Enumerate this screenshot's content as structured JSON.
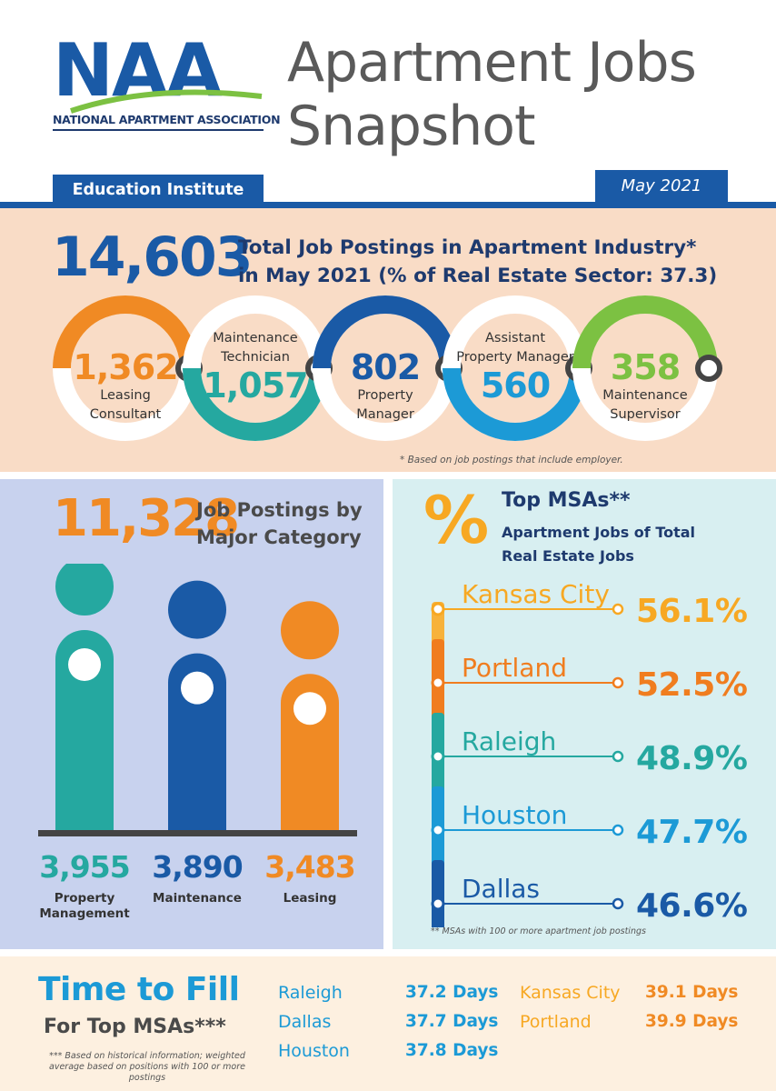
{
  "header": {
    "logo_letters": "NAA",
    "org_name": "NATIONAL APARTMENT ASSOCIATION",
    "org_unit": "Education Institute",
    "title_line1": "Apartment Jobs",
    "title_line2": "Snapshot",
    "date": "May 2021"
  },
  "totals": {
    "number": "14,603",
    "desc_line1": "Total Job Postings in Apartment Industry*",
    "desc_line2": "in May 2021 (% of Real Estate Sector: 37.3)",
    "footnote": "* Based on job postings that include employer."
  },
  "roles": [
    {
      "value": "1,362",
      "label_line1": "Leasing",
      "label_line2": "Consultant",
      "color": "#f08a24",
      "value_color": "#f08a24"
    },
    {
      "value": "1,057",
      "label_line1": "Maintenance",
      "label_line2": "Technician",
      "color": "#25a8a0",
      "value_color": "#25a8a0"
    },
    {
      "value": "802",
      "label_line1": "Property",
      "label_line2": "Manager",
      "color": "#1a5aa6",
      "value_color": "#1a5aa6"
    },
    {
      "value": "560",
      "label_line1": "Assistant",
      "label_line2": "Property Manager",
      "color": "#1c9ad6",
      "value_color": "#1c9ad6"
    },
    {
      "value": "358",
      "label_line1": "Maintenance",
      "label_line2": "Supervisor",
      "color": "#7cc142",
      "value_color": "#7cc142"
    }
  ],
  "categories": {
    "number": "11,328",
    "desc_line1": "Job Postings by",
    "desc_line2": "Major Category",
    "items": [
      {
        "value": "3,955",
        "label_line1": "Property",
        "label_line2": "Management",
        "color": "#25a8a0",
        "amount": 3955
      },
      {
        "value": "3,890",
        "label_line1": "Maintenance",
        "label_line2": "",
        "color": "#1a5aa6",
        "amount": 3890
      },
      {
        "value": "3,483",
        "label_line1": "Leasing",
        "label_line2": "",
        "color": "#f08a24",
        "amount": 3483
      }
    ]
  },
  "msa": {
    "glyph": "%",
    "title": "Top MSAs**",
    "sub_line1": "Apartment Jobs of Total",
    "sub_line2": "Real Estate Jobs",
    "footnote": "** MSAs with 100 or more apartment job postings",
    "items": [
      {
        "city": "Kansas City",
        "pct": "56.1%",
        "color": "#f7a823",
        "track": "#f7b23b"
      },
      {
        "city": "Portland",
        "pct": "52.5%",
        "color": "#f07d1f",
        "track": "#f07d1f"
      },
      {
        "city": "Raleigh",
        "pct": "48.9%",
        "color": "#25a8a0",
        "track": "#25a8a0"
      },
      {
        "city": "Houston",
        "pct": "47.7%",
        "color": "#1c9ad6",
        "track": "#1c9ad6"
      },
      {
        "city": "Dallas",
        "pct": "46.6%",
        "color": "#1a5aa6",
        "track": "#1a5aa6"
      }
    ]
  },
  "time_to_fill": {
    "title_line1": "Time to Fill",
    "title_line2": "For Top MSAs***",
    "footnote": "*** Based on historical information; weighted average based on positions with 100 or more postings",
    "col1": [
      {
        "city": "Raleigh",
        "days": "37.2 Days"
      },
      {
        "city": "Dallas",
        "days": "37.7 Days"
      },
      {
        "city": "Houston",
        "days": "37.8 Days"
      }
    ],
    "col2": [
      {
        "city": "Kansas City",
        "days": "39.1 Days"
      },
      {
        "city": "Portland",
        "days": "39.9 Days"
      }
    ],
    "colors": {
      "blue_city": "#1c9ad6",
      "blue_days": "#1c9ad6",
      "orange_city": "#f7a823",
      "orange_days": "#f08a24"
    }
  }
}
